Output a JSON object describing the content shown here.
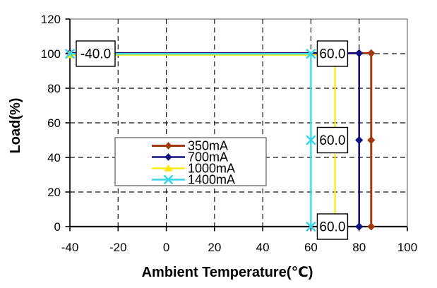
{
  "chart_data": {
    "type": "line",
    "title": "",
    "xlabel": "Ambient Temperature(℃)",
    "ylabel": "Load(%)",
    "xlim": [
      -40,
      100
    ],
    "ylim": [
      0,
      120
    ],
    "xticks": [
      -40,
      -20,
      0,
      20,
      40,
      60,
      80,
      100
    ],
    "yticks": [
      0,
      20,
      40,
      60,
      80,
      100,
      120
    ],
    "grid": "dashed both axes",
    "plot_border_color": "#7d7d7d",
    "axis_color": "#000000",
    "background": "#ffffff",
    "legend": {
      "position": "inside center-left",
      "border_color": "#666666",
      "entries": [
        "350mA",
        "700mA",
        "1000mA",
        "1400mA"
      ]
    },
    "series": [
      {
        "name": "350mA",
        "color": "#A13A11",
        "marker": "diamond",
        "points": [
          [
            -40,
            100
          ],
          [
            85,
            100
          ],
          [
            85,
            50
          ],
          [
            85,
            0
          ]
        ]
      },
      {
        "name": "700mA",
        "color": "#12127E",
        "marker": "diamond",
        "points": [
          [
            -40,
            100
          ],
          [
            80,
            100
          ],
          [
            80,
            50
          ],
          [
            80,
            0
          ]
        ]
      },
      {
        "name": "1000mA",
        "color": "#FFE60A",
        "marker": "triangle-up",
        "points": [
          [
            -40,
            100
          ],
          [
            70,
            100
          ],
          [
            70,
            50
          ],
          [
            70,
            0
          ]
        ]
      },
      {
        "name": "1400mA",
        "color": "#3BD6E8",
        "marker": "x",
        "points": [
          [
            -40,
            100
          ],
          [
            60,
            100
          ],
          [
            60,
            50
          ],
          [
            60,
            0
          ]
        ]
      }
    ],
    "data_labels": [
      {
        "text": "-40.0",
        "x": -40,
        "y": 100
      },
      {
        "text": "60.0",
        "x": 60,
        "y": 100
      },
      {
        "text": "60.0",
        "x": 60,
        "y": 50
      },
      {
        "text": "60.0",
        "x": 60,
        "y": 0
      }
    ]
  }
}
